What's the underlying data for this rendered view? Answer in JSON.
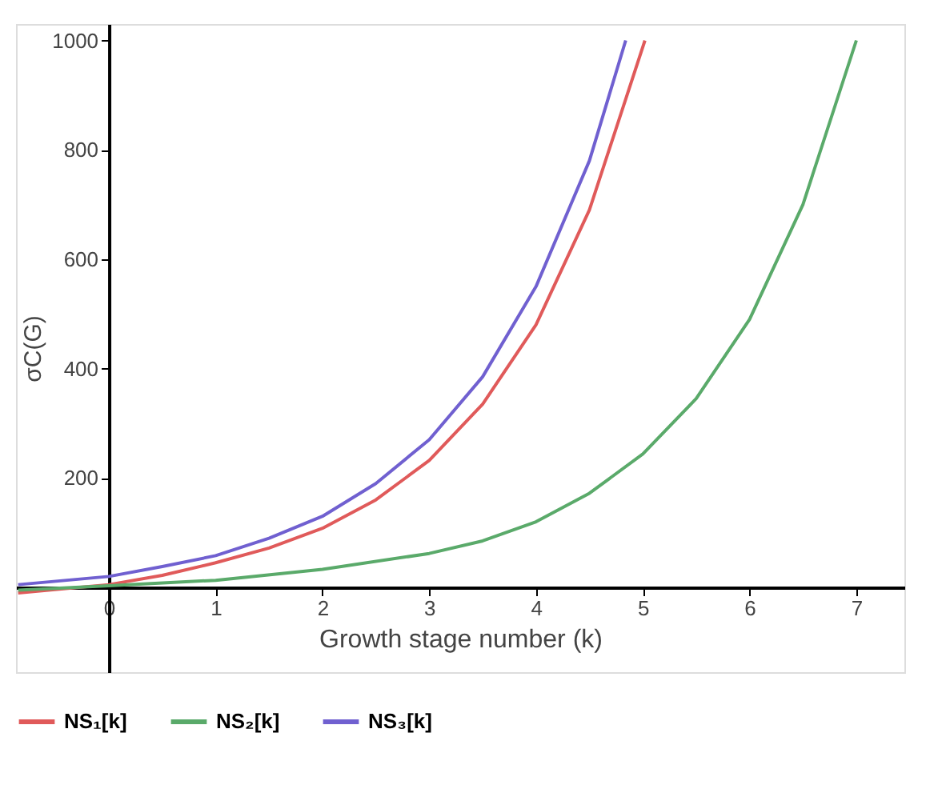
{
  "chart_data": {
    "type": "line",
    "xlabel": "Growth stage number  (k)",
    "ylabel": "σC(G)",
    "xlim": [
      -0.87,
      7.45
    ],
    "ylim": [
      -155,
      1030
    ],
    "xticks": [
      0,
      1,
      2,
      3,
      4,
      5,
      6,
      7
    ],
    "yticks": [
      200,
      400,
      600,
      800,
      1000
    ],
    "grid": false,
    "legend": "bottom",
    "marker": "none",
    "line_style": "solid",
    "series": [
      {
        "name": "NS₁[k]",
        "color": "#e05a5a",
        "x": [
          -0.85,
          0,
          0.5,
          1,
          1.5,
          2,
          2.5,
          3,
          3.5,
          4,
          4.5,
          5.02
        ],
        "values": [
          -10,
          5,
          22,
          45,
          72,
          108,
          160,
          232,
          335,
          480,
          690,
          1000
        ]
      },
      {
        "name": "NS₂[k]",
        "color": "#5aaa6a",
        "x": [
          -0.85,
          0,
          1,
          2,
          3,
          3.5,
          4,
          4.5,
          5,
          5.5,
          6,
          6.5,
          7
        ],
        "values": [
          -5,
          3,
          13,
          33,
          62,
          85,
          120,
          172,
          244,
          345,
          490,
          700,
          1000
        ]
      },
      {
        "name": "NS₃[k]",
        "color": "#7060d0",
        "x": [
          -0.85,
          0,
          0.5,
          1,
          1.5,
          2,
          2.5,
          3,
          3.5,
          4,
          4.5,
          4.84
        ],
        "values": [
          5,
          20,
          38,
          58,
          90,
          130,
          190,
          270,
          385,
          550,
          780,
          1000
        ]
      }
    ]
  }
}
